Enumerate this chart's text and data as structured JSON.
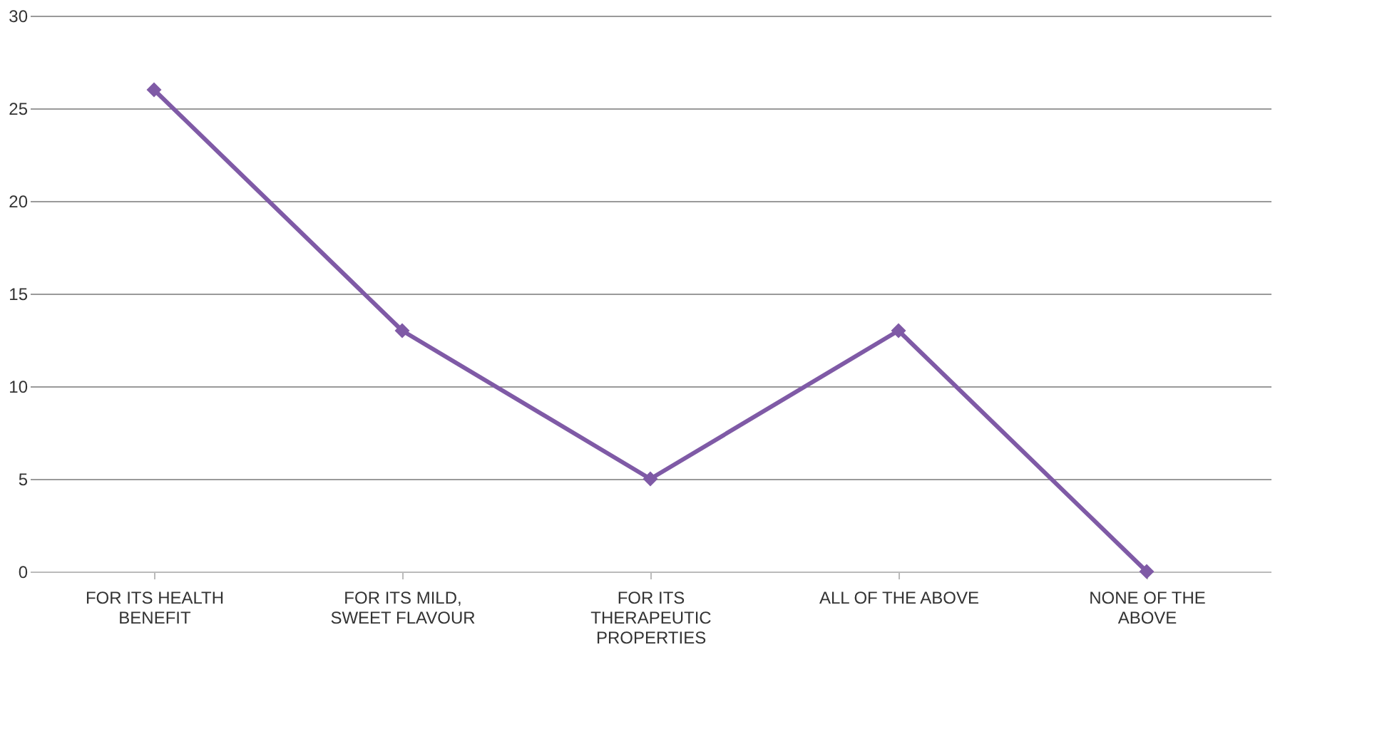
{
  "chart_data": {
    "type": "line",
    "categories": [
      "FOR ITS HEALTH BENEFIT",
      "FOR ITS MILD, SWEET FLAVOUR",
      "FOR ITS THERAPEUTIC PROPERTIES",
      "ALL OF THE ABOVE",
      "NONE OF THE ABOVE"
    ],
    "series": [
      {
        "color": "#7f5aa6",
        "values": [
          26,
          13,
          5,
          13,
          0
        ]
      }
    ],
    "ylim": [
      0,
      30
    ],
    "yticks": [
      0,
      5,
      10,
      15,
      20,
      25,
      30
    ],
    "grid": "y",
    "marker": "diamond",
    "line_style": "solid"
  }
}
